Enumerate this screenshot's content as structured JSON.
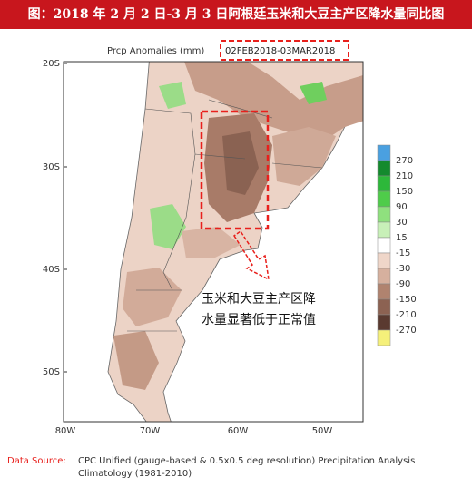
{
  "header": {
    "title": "图：2018 年 2 月 2 日-3 月 3 日阿根廷玉米和大豆主产区降水量同比图"
  },
  "map": {
    "title": "Prcp Anomalies (mm)",
    "period": "02FEB2018-03MAR2018",
    "lat_labels": [
      "20S",
      "30S",
      "40S",
      "50S"
    ],
    "lon_labels": [
      "80W",
      "70W",
      "60W",
      "50W"
    ],
    "annotation": [
      "玉米和大豆主产区降",
      "水量显著低于正常值"
    ]
  },
  "legend": {
    "labels": [
      270,
      210,
      150,
      90,
      30,
      15,
      -15,
      -30,
      -90,
      -150,
      -210,
      -270
    ]
  },
  "source": {
    "label": "Data Source:",
    "text": "CPC Unified (gauge-based & 0.5x0.5 deg resolution) Precipitation Analysis",
    "climatology": "Climatology (1981-2010)"
  }
}
